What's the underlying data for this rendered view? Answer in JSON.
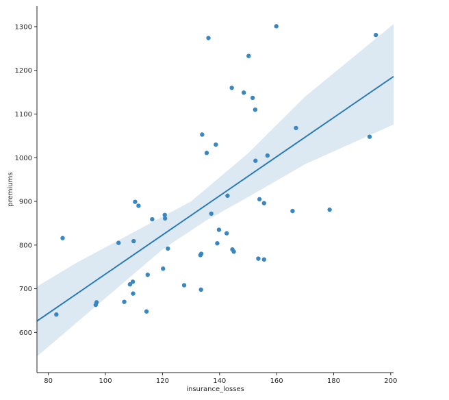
{
  "chart_data": {
    "type": "scatter",
    "title": "",
    "xlabel": "insurance_losses",
    "ylabel": "premiums",
    "xlim": [
      76,
      201
    ],
    "ylim": [
      508,
      1347
    ],
    "xticks": [
      80,
      100,
      120,
      140,
      160,
      180,
      200
    ],
    "yticks": [
      600,
      700,
      800,
      900,
      1000,
      1100,
      1200,
      1300
    ],
    "grid": false,
    "legend": "none",
    "colors": {
      "points": "#3a87c0",
      "line": "#2a7ab8",
      "band": "#dce9f3",
      "axis": "#262626"
    },
    "series": [
      {
        "points": [
          [
            82.8,
            641
          ],
          [
            85.0,
            816
          ],
          [
            96.6,
            663
          ],
          [
            96.9,
            669
          ],
          [
            104.6,
            805
          ],
          [
            106.6,
            670
          ],
          [
            108.6,
            710
          ],
          [
            109.6,
            716
          ],
          [
            109.7,
            689
          ],
          [
            109.9,
            809
          ],
          [
            110.4,
            899
          ],
          [
            111.6,
            890
          ],
          [
            114.4,
            648
          ],
          [
            114.8,
            732
          ],
          [
            116.4,
            859
          ],
          [
            120.2,
            746
          ],
          [
            120.8,
            869
          ],
          [
            120.9,
            861
          ],
          [
            121.9,
            792
          ],
          [
            127.6,
            708
          ],
          [
            133.3,
            777
          ],
          [
            133.5,
            698
          ],
          [
            133.6,
            780
          ],
          [
            133.9,
            1053
          ],
          [
            135.5,
            1011
          ],
          [
            136.1,
            1274
          ],
          [
            137.1,
            872
          ],
          [
            138.7,
            1030
          ],
          [
            139.2,
            804
          ],
          [
            139.8,
            835
          ],
          [
            142.5,
            827
          ],
          [
            142.8,
            913
          ],
          [
            144.3,
            1160
          ],
          [
            144.5,
            790
          ],
          [
            145.0,
            785
          ],
          [
            148.5,
            1149
          ],
          [
            150.2,
            1233
          ],
          [
            151.6,
            1137
          ],
          [
            152.5,
            1110
          ],
          [
            152.6,
            993
          ],
          [
            153.6,
            769
          ],
          [
            154.0,
            905
          ],
          [
            155.6,
            767
          ],
          [
            155.6,
            896
          ],
          [
            156.8,
            1005
          ],
          [
            159.9,
            1301
          ],
          [
            165.6,
            878
          ],
          [
            166.8,
            1068
          ],
          [
            178.6,
            881
          ],
          [
            192.6,
            1048
          ],
          [
            194.8,
            1281
          ]
        ]
      }
    ],
    "regression": {
      "line": [
        [
          76,
          626
        ],
        [
          201,
          1186
        ]
      ],
      "ci_lower": [
        [
          76,
          545
        ],
        [
          120,
          790
        ],
        [
          135,
          855
        ],
        [
          150,
          910
        ],
        [
          170,
          985
        ],
        [
          201,
          1076
        ]
      ],
      "ci_upper": [
        [
          76,
          705
        ],
        [
          90,
          760
        ],
        [
          110,
          830
        ],
        [
          130,
          900
        ],
        [
          150,
          1010
        ],
        [
          170,
          1140
        ],
        [
          201,
          1306
        ]
      ]
    }
  }
}
